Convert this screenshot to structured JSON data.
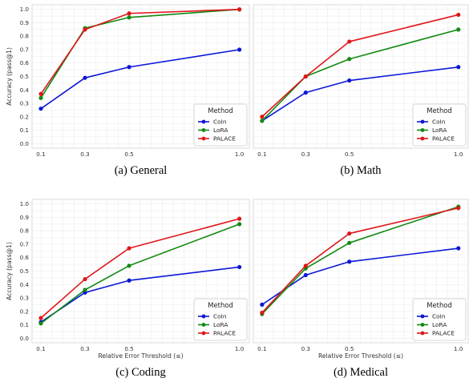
{
  "chart_data": [
    {
      "type": "line",
      "caption": "(a) General",
      "ylabel": "Accuracy (pass@1)",
      "xlabel": "",
      "x": [
        0.1,
        0.3,
        0.5,
        1.0
      ],
      "x_tick_labels": [
        "0.1",
        "0.3",
        "0.5",
        "1.0"
      ],
      "ylim": [
        0.0,
        1.0
      ],
      "y_ticks": [
        "0.0",
        "0.1",
        "0.2",
        "0.3",
        "0.4",
        "0.5",
        "0.6",
        "0.7",
        "0.8",
        "0.9",
        "1.0"
      ],
      "grid": true,
      "legend": {
        "title": "Method",
        "placement": "bottom-right"
      },
      "series": [
        {
          "name": "CoIn",
          "color": "#0b16d8",
          "values": [
            0.26,
            0.49,
            0.57,
            0.7
          ]
        },
        {
          "name": "LoRA",
          "color": "#128a12",
          "values": [
            0.34,
            0.86,
            0.94,
            1.0
          ]
        },
        {
          "name": "PALACE",
          "color": "#e0161b",
          "values": [
            0.37,
            0.85,
            0.97,
            1.0
          ]
        }
      ]
    },
    {
      "type": "line",
      "caption": "(b) Math",
      "ylabel": "",
      "xlabel": "",
      "x": [
        0.1,
        0.3,
        0.5,
        1.0
      ],
      "x_tick_labels": [
        "0.1",
        "0.3",
        "0.5",
        "1.0"
      ],
      "ylim": [
        0.0,
        1.0
      ],
      "y_ticks": [],
      "grid": true,
      "legend": {
        "title": "Method",
        "placement": "bottom-right"
      },
      "series": [
        {
          "name": "CoIn",
          "color": "#0b16d8",
          "values": [
            0.17,
            0.38,
            0.47,
            0.57
          ]
        },
        {
          "name": "LoRA",
          "color": "#128a12",
          "values": [
            0.17,
            0.5,
            0.63,
            0.85
          ]
        },
        {
          "name": "PALACE",
          "color": "#e0161b",
          "values": [
            0.2,
            0.5,
            0.76,
            0.96
          ]
        }
      ]
    },
    {
      "type": "line",
      "caption": "(c) Coding",
      "ylabel": "Accuracy (pass@1)",
      "xlabel": "Relative Error Threshold (≤)",
      "x": [
        0.1,
        0.3,
        0.5,
        1.0
      ],
      "x_tick_labels": [
        "0.1",
        "0.3",
        "0.5",
        "1.0"
      ],
      "ylim": [
        0.0,
        1.0
      ],
      "y_ticks": [
        "0.0",
        "0.1",
        "0.2",
        "0.3",
        "0.4",
        "0.5",
        "0.6",
        "0.7",
        "0.8",
        "0.9",
        "1.0"
      ],
      "grid": true,
      "legend": {
        "title": "Method",
        "placement": "bottom-right"
      },
      "series": [
        {
          "name": "CoIn",
          "color": "#0b16d8",
          "values": [
            0.12,
            0.34,
            0.43,
            0.53
          ]
        },
        {
          "name": "LoRA",
          "color": "#128a12",
          "values": [
            0.11,
            0.36,
            0.54,
            0.85
          ]
        },
        {
          "name": "PALACE",
          "color": "#e0161b",
          "values": [
            0.15,
            0.44,
            0.67,
            0.89
          ]
        }
      ]
    },
    {
      "type": "line",
      "caption": "(d) Medical",
      "ylabel": "",
      "xlabel": "Relative Error Threshold (≤)",
      "x": [
        0.1,
        0.3,
        0.5,
        1.0
      ],
      "x_tick_labels": [
        "0.1",
        "0.3",
        "0.5",
        "1.0"
      ],
      "ylim": [
        0.0,
        1.0
      ],
      "y_ticks": [],
      "grid": true,
      "legend": {
        "title": "Method",
        "placement": "bottom-right"
      },
      "series": [
        {
          "name": "CoIn",
          "color": "#0b16d8",
          "values": [
            0.25,
            0.47,
            0.57,
            0.67
          ]
        },
        {
          "name": "LoRA",
          "color": "#128a12",
          "values": [
            0.18,
            0.52,
            0.71,
            0.98
          ]
        },
        {
          "name": "PALACE",
          "color": "#e0161b",
          "values": [
            0.19,
            0.54,
            0.78,
            0.97
          ]
        }
      ]
    }
  ]
}
